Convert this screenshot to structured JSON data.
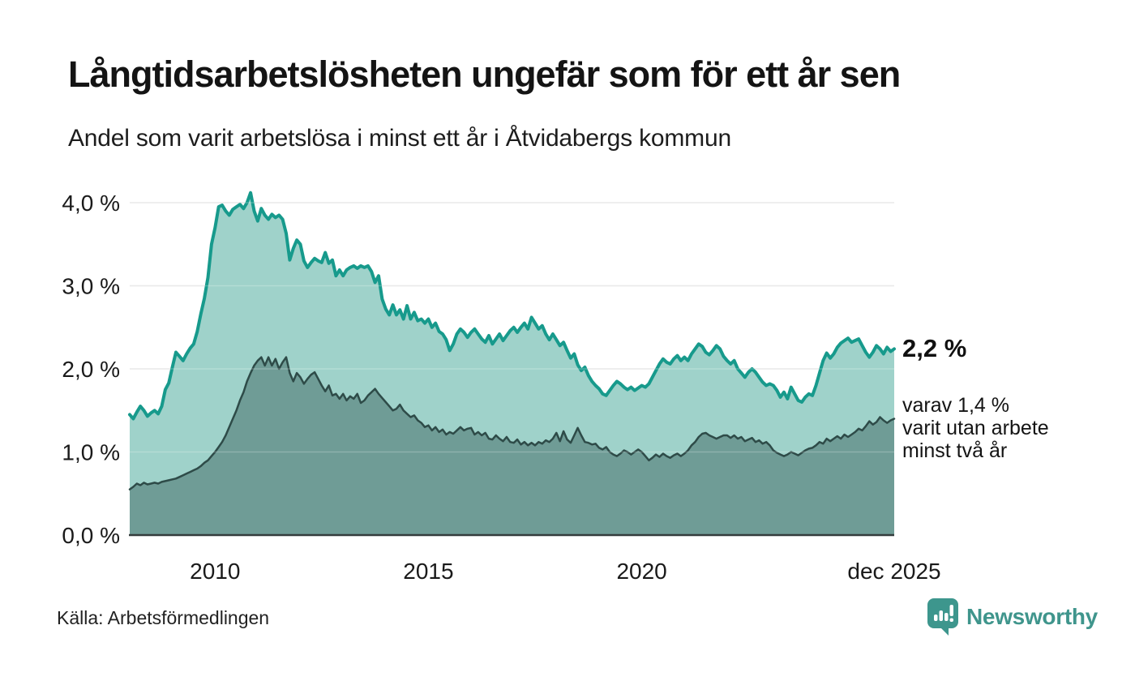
{
  "header": {
    "title": "Långtidsarbetslösheten ungefär som för ett år sen",
    "subtitle": "Andel som varit arbetslösa i minst ett år i Åtvidabergs kommun"
  },
  "chart_data": {
    "type": "area",
    "title": "Långtidsarbetslösheten ungefär som för ett år sen",
    "subtitle": "Andel som varit arbetslösa i minst ett år i Åtvidabergs kommun",
    "unit": "%",
    "grid": "horizontal",
    "legend_position": "none",
    "x_start": 2008.0,
    "x_end": 2025.917,
    "ylim": [
      0,
      4.15
    ],
    "y_ticks": [
      {
        "label": "4,0 %",
        "value": 4.0
      },
      {
        "label": "3,0 %",
        "value": 3.0
      },
      {
        "label": "2,0 %",
        "value": 2.0
      },
      {
        "label": "1,0 %",
        "value": 1.0
      },
      {
        "label": "0,0 %",
        "value": 0.0
      }
    ],
    "x_ticks": [
      {
        "label": "2010",
        "t": 2010.0
      },
      {
        "label": "2015",
        "t": 2015.0
      },
      {
        "label": "2020",
        "t": 2020.0
      },
      {
        "label": "dec 2025",
        "t": 2025.917
      }
    ],
    "series": [
      {
        "id": "unemployed-min-one-year",
        "fill": "#9fd2ca",
        "stroke": "#179a8c",
        "stroke_width": 4,
        "latest_value": 2.2,
        "values": [
          1.45,
          1.4,
          1.48,
          1.55,
          1.5,
          1.43,
          1.47,
          1.5,
          1.46,
          1.55,
          1.75,
          1.83,
          2.02,
          2.2,
          2.15,
          2.1,
          2.18,
          2.25,
          2.3,
          2.45,
          2.66,
          2.85,
          3.1,
          3.5,
          3.7,
          3.95,
          3.97,
          3.9,
          3.85,
          3.92,
          3.95,
          3.98,
          3.93,
          4.0,
          4.12,
          3.9,
          3.78,
          3.93,
          3.85,
          3.8,
          3.86,
          3.82,
          3.85,
          3.8,
          3.63,
          3.31,
          3.45,
          3.55,
          3.5,
          3.3,
          3.22,
          3.28,
          3.33,
          3.3,
          3.28,
          3.4,
          3.27,
          3.31,
          3.12,
          3.19,
          3.12,
          3.19,
          3.22,
          3.24,
          3.21,
          3.24,
          3.22,
          3.24,
          3.17,
          3.04,
          3.12,
          2.84,
          2.72,
          2.65,
          2.77,
          2.65,
          2.71,
          2.6,
          2.76,
          2.6,
          2.68,
          2.58,
          2.6,
          2.55,
          2.6,
          2.5,
          2.55,
          2.45,
          2.42,
          2.35,
          2.22,
          2.3,
          2.42,
          2.48,
          2.44,
          2.38,
          2.44,
          2.48,
          2.42,
          2.36,
          2.32,
          2.4,
          2.3,
          2.36,
          2.42,
          2.34,
          2.4,
          2.46,
          2.5,
          2.44,
          2.5,
          2.55,
          2.48,
          2.62,
          2.55,
          2.48,
          2.52,
          2.42,
          2.35,
          2.42,
          2.35,
          2.28,
          2.32,
          2.22,
          2.13,
          2.18,
          2.05,
          1.98,
          2.02,
          1.92,
          1.85,
          1.8,
          1.76,
          1.7,
          1.68,
          1.74,
          1.8,
          1.85,
          1.82,
          1.78,
          1.75,
          1.78,
          1.74,
          1.77,
          1.8,
          1.78,
          1.82,
          1.9,
          1.98,
          2.06,
          2.12,
          2.08,
          2.06,
          2.12,
          2.16,
          2.1,
          2.14,
          2.1,
          2.18,
          2.24,
          2.3,
          2.27,
          2.2,
          2.17,
          2.22,
          2.28,
          2.24,
          2.15,
          2.1,
          2.06,
          2.1,
          2.0,
          1.95,
          1.9,
          1.96,
          2.0,
          1.96,
          1.9,
          1.84,
          1.8,
          1.82,
          1.8,
          1.74,
          1.66,
          1.72,
          1.64,
          1.78,
          1.7,
          1.62,
          1.6,
          1.66,
          1.7,
          1.68,
          1.8,
          1.95,
          2.1,
          2.19,
          2.13,
          2.18,
          2.26,
          2.31,
          2.34,
          2.37,
          2.32,
          2.34,
          2.36,
          2.28,
          2.2,
          2.14,
          2.2,
          2.28,
          2.24,
          2.18,
          2.26,
          2.21,
          2.24
        ]
      },
      {
        "id": "unemployed-min-two-years",
        "fill": "#6f9c96",
        "stroke": "#2e4b48",
        "stroke_width": 2.5,
        "latest_value": 1.4,
        "values": [
          0.55,
          0.58,
          0.62,
          0.6,
          0.63,
          0.61,
          0.62,
          0.63,
          0.62,
          0.64,
          0.65,
          0.66,
          0.67,
          0.68,
          0.7,
          0.72,
          0.74,
          0.76,
          0.78,
          0.8,
          0.83,
          0.87,
          0.9,
          0.95,
          1.0,
          1.06,
          1.12,
          1.2,
          1.3,
          1.4,
          1.5,
          1.62,
          1.72,
          1.85,
          1.95,
          2.04,
          2.1,
          2.14,
          2.04,
          2.14,
          2.04,
          2.12,
          2.0,
          2.08,
          2.14,
          1.95,
          1.85,
          1.95,
          1.9,
          1.82,
          1.88,
          1.93,
          1.96,
          1.88,
          1.8,
          1.73,
          1.8,
          1.68,
          1.7,
          1.64,
          1.7,
          1.62,
          1.67,
          1.64,
          1.7,
          1.59,
          1.62,
          1.68,
          1.72,
          1.76,
          1.7,
          1.65,
          1.6,
          1.55,
          1.5,
          1.52,
          1.57,
          1.5,
          1.46,
          1.42,
          1.44,
          1.38,
          1.35,
          1.3,
          1.32,
          1.26,
          1.3,
          1.24,
          1.27,
          1.21,
          1.24,
          1.22,
          1.26,
          1.3,
          1.26,
          1.28,
          1.29,
          1.21,
          1.24,
          1.2,
          1.23,
          1.16,
          1.15,
          1.2,
          1.16,
          1.13,
          1.18,
          1.12,
          1.11,
          1.15,
          1.09,
          1.12,
          1.08,
          1.11,
          1.08,
          1.12,
          1.1,
          1.14,
          1.12,
          1.16,
          1.23,
          1.13,
          1.25,
          1.15,
          1.11,
          1.2,
          1.29,
          1.2,
          1.12,
          1.11,
          1.09,
          1.1,
          1.05,
          1.03,
          1.06,
          1.0,
          0.97,
          0.95,
          0.98,
          1.02,
          1.0,
          0.97,
          1.0,
          1.03,
          1.0,
          0.95,
          0.9,
          0.93,
          0.97,
          0.94,
          0.98,
          0.95,
          0.93,
          0.96,
          0.98,
          0.95,
          0.98,
          1.02,
          1.08,
          1.12,
          1.18,
          1.22,
          1.23,
          1.2,
          1.18,
          1.16,
          1.18,
          1.2,
          1.2,
          1.17,
          1.2,
          1.16,
          1.18,
          1.13,
          1.15,
          1.17,
          1.12,
          1.14,
          1.1,
          1.12,
          1.08,
          1.02,
          0.99,
          0.97,
          0.95,
          0.97,
          1.0,
          0.98,
          0.96,
          0.99,
          1.02,
          1.04,
          1.05,
          1.08,
          1.12,
          1.1,
          1.16,
          1.13,
          1.16,
          1.19,
          1.16,
          1.21,
          1.18,
          1.21,
          1.24,
          1.28,
          1.26,
          1.31,
          1.37,
          1.33,
          1.36,
          1.42,
          1.38,
          1.35,
          1.38,
          1.4
        ]
      }
    ],
    "annotations": {
      "total_label": "2,2 %",
      "two_years_lines": [
        "varav 1,4 %",
        "varit utan arbete",
        "minst två år"
      ]
    }
  },
  "footer": {
    "source": "Källa: Arbetsförmedlingen",
    "brand": "Newsworthy"
  },
  "colors": {
    "accent_teal": "#179a8c",
    "fill_light": "#9fd2ca",
    "fill_dark": "#6f9c96",
    "stroke_dark": "#2e4b48",
    "gridline": "#e4e4e4",
    "baseline": "#343c3c",
    "brand_teal": "#3f958c"
  }
}
